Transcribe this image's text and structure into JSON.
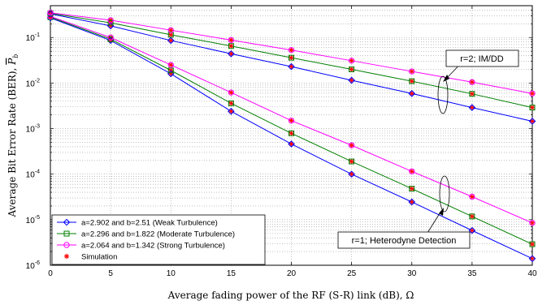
{
  "chart_data": {
    "type": "line",
    "xlabel": "Average fading power of the RF (S-R) link (dB), Ω",
    "ylabel": "Average Bit Error Rate (BER),",
    "ylabel_symbol": "P",
    "ylabel_symbol_sub": "b",
    "xlim": [
      0,
      40
    ],
    "ylim": [
      1e-06,
      0.5
    ],
    "yscale": "log",
    "grid": true,
    "x_ticks": [
      "0",
      "5",
      "10",
      "15",
      "20",
      "25",
      "30",
      "35",
      "40"
    ],
    "y_ticks": [
      {
        "value": 1e-06,
        "base": "10",
        "exp": "-6"
      },
      {
        "value": 1e-05,
        "base": "10",
        "exp": "-5"
      },
      {
        "value": 0.0001,
        "base": "10",
        "exp": "-4"
      },
      {
        "value": 0.001,
        "base": "10",
        "exp": "-3"
      },
      {
        "value": 0.01,
        "base": "10",
        "exp": "-2"
      },
      {
        "value": 0.1,
        "base": "10",
        "exp": "-1"
      }
    ],
    "x": [
      0,
      5,
      10,
      15,
      20,
      25,
      30,
      35,
      40
    ],
    "series": [
      {
        "name": "a=2.902 and b=2.51 (Weak Turbulence)",
        "group": "r=1",
        "color": "#0000ff",
        "marker": "diamond",
        "values": [
          0.27,
          0.086,
          0.016,
          0.0024,
          0.00046,
          0.0001,
          2.45e-05,
          5.8e-06,
          1.4e-06
        ]
      },
      {
        "name": "a=2.296 and b=1.822 (Moderate Turbulence)",
        "group": "r=1",
        "color": "#007f00",
        "marker": "square",
        "values": [
          0.28,
          0.092,
          0.019,
          0.0036,
          0.00079,
          0.00019,
          4.8e-05,
          1.18e-05,
          2.9e-06
        ]
      },
      {
        "name": "a=2.064 and b=1.342 (Strong Turbulence)",
        "group": "r=1",
        "color": "#ff00ff",
        "marker": "circle",
        "values": [
          0.29,
          0.1,
          0.025,
          0.0062,
          0.0015,
          0.00043,
          0.000115,
          3.2e-05,
          8.5e-06
        ]
      },
      {
        "name": "a=2.902 and b=2.51 (Weak Turbulence)",
        "group": "r=2",
        "color": "#0000ff",
        "marker": "diamond",
        "values": [
          0.33,
          0.18,
          0.086,
          0.044,
          0.023,
          0.0115,
          0.0059,
          0.0029,
          0.00145
        ]
      },
      {
        "name": "a=2.296 and b=1.822 (Moderate Turbulence)",
        "group": "r=2",
        "color": "#007f00",
        "marker": "square",
        "values": [
          0.34,
          0.21,
          0.115,
          0.065,
          0.036,
          0.02,
          0.011,
          0.0058,
          0.0029
        ]
      },
      {
        "name": "a=2.064 and b=1.342 (Strong Turbulence)",
        "group": "r=2",
        "color": "#ff00ff",
        "marker": "circle",
        "values": [
          0.35,
          0.24,
          0.145,
          0.088,
          0.053,
          0.031,
          0.018,
          0.0105,
          0.0059
        ]
      }
    ],
    "simulation": {
      "name": "Simulation",
      "color": "#ff0000",
      "marker": "asterisk"
    },
    "legend": {
      "placement": "bottom-left",
      "entries": [
        {
          "label": "a=2.902 and b=2.51 (Weak Turbulence)",
          "color": "#0000ff",
          "marker": "diamond",
          "line": true
        },
        {
          "label": "a=2.296 and b=1.822 (Moderate Turbulence)",
          "color": "#007f00",
          "marker": "square",
          "line": true
        },
        {
          "label": "a=2.064 and b=1.342 (Strong Turbulence)",
          "color": "#ff00ff",
          "marker": "circle",
          "line": true
        },
        {
          "label": "Simulation",
          "color": "#ff0000",
          "marker": "asterisk",
          "line": false
        }
      ]
    },
    "annotations": [
      {
        "text": "r=2; IM/DD",
        "points_to": "r=2 curves near Ω=30 dB"
      },
      {
        "text": "r=1; Heterodyne Detection",
        "points_to": "r=1 curves near Ω=32 dB"
      }
    ]
  }
}
